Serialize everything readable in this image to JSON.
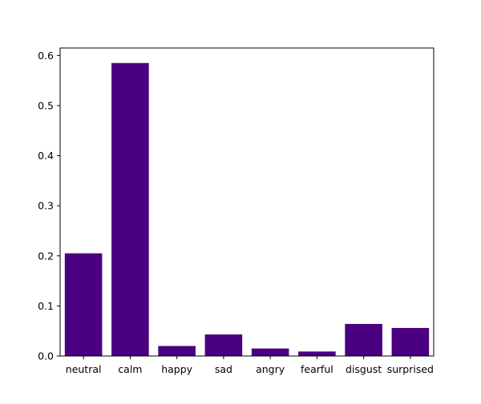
{
  "chart_data": {
    "type": "bar",
    "categories": [
      "neutral",
      "calm",
      "happy",
      "sad",
      "angry",
      "fearful",
      "disgust",
      "surprised"
    ],
    "values": [
      0.205,
      0.585,
      0.02,
      0.043,
      0.015,
      0.009,
      0.064,
      0.056
    ],
    "ylim": [
      0,
      0.615
    ],
    "yticks": [
      "0.0",
      "0.1",
      "0.2",
      "0.3",
      "0.4",
      "0.5",
      "0.6"
    ],
    "bar_color": "#4b0082",
    "grid": false
  }
}
